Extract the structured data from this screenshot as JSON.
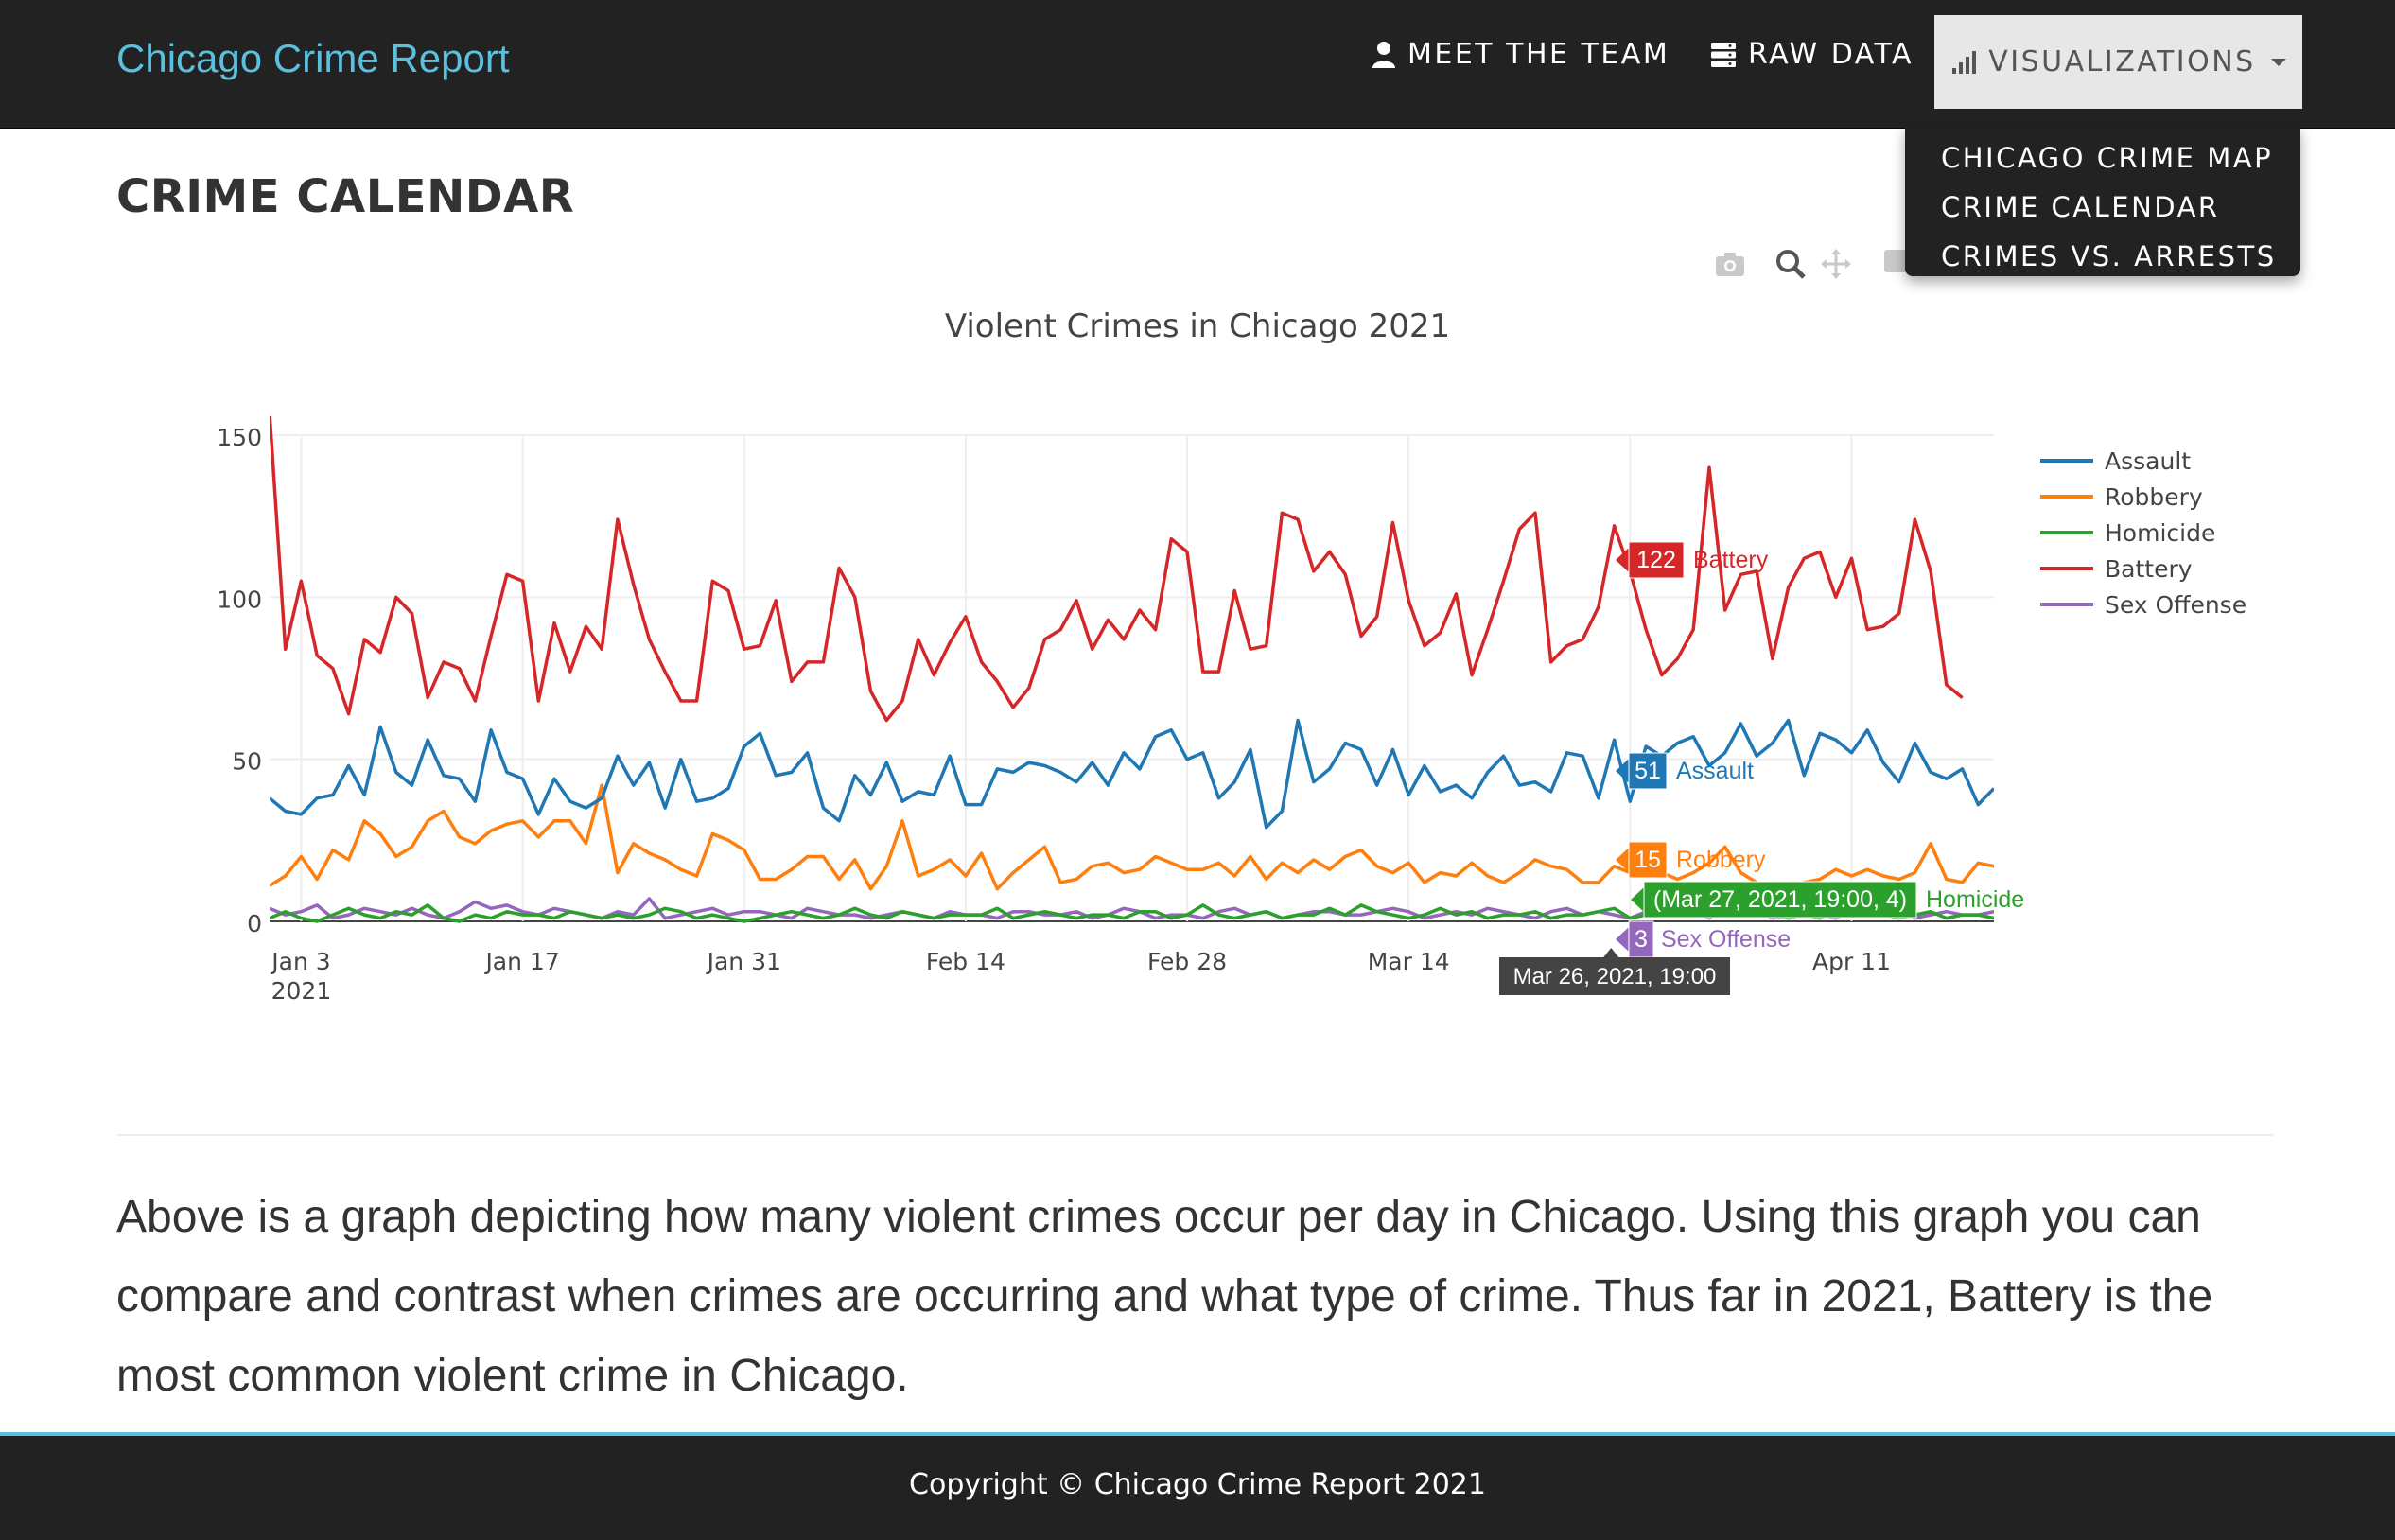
{
  "navbar": {
    "brand": "Chicago Crime Report",
    "items": [
      {
        "label": "MEET THE TEAM",
        "icon": "user-icon"
      },
      {
        "label": "RAW DATA",
        "icon": "server-icon"
      },
      {
        "label": "VISUALIZATIONS",
        "icon": "bar-chart-icon",
        "active": true
      }
    ],
    "dropdown": [
      "CHICAGO CRIME MAP",
      "CRIME CALENDAR",
      "CRIMES VS. ARRESTS"
    ]
  },
  "page": {
    "title": "CRIME CALENDAR",
    "description": "Above is a graph depicting how many violent crimes occur per day in Chicago. Using this graph you can compare and contrast when crimes are occurring and what type of crime. Thus far in 2021, Battery is the most common violent crime in Chicago."
  },
  "modebar": [
    "camera-icon",
    "zoom-icon",
    "pan-icon",
    "zoom-in-icon"
  ],
  "chart_data": {
    "type": "line",
    "title": "Violent Crimes in Chicago 2021",
    "x_start": "2021-01-01",
    "x_end": "2021-04-20",
    "xticks": [
      {
        "date": "2021-01-03",
        "label": "Jan 3",
        "sublabel": "2021"
      },
      {
        "date": "2021-01-17",
        "label": "Jan 17"
      },
      {
        "date": "2021-01-31",
        "label": "Jan 31"
      },
      {
        "date": "2021-02-14",
        "label": "Feb 14"
      },
      {
        "date": "2021-02-28",
        "label": "Feb 28"
      },
      {
        "date": "2021-03-14",
        "label": "Mar 14"
      },
      {
        "date": "2021-03-28",
        "label": ""
      },
      {
        "date": "2021-04-11",
        "label": "Apr 11"
      }
    ],
    "ylim": [
      0,
      150
    ],
    "yticks": [
      0,
      50,
      100,
      150
    ],
    "grid": true,
    "legend_position": "right",
    "series": [
      {
        "name": "Assault",
        "color": "#1f77b4",
        "values": [
          38,
          34,
          33,
          38,
          39,
          48,
          39,
          60,
          46,
          42,
          56,
          45,
          44,
          37,
          59,
          46,
          44,
          33,
          44,
          37,
          35,
          38,
          51,
          42,
          49,
          35,
          50,
          37,
          38,
          41,
          54,
          58,
          45,
          46,
          52,
          35,
          31,
          45,
          39,
          49,
          37,
          40,
          39,
          51,
          36,
          36,
          47,
          46,
          49,
          48,
          46,
          43,
          49,
          42,
          52,
          47,
          57,
          59,
          50,
          52,
          38,
          43,
          53,
          29,
          34,
          62,
          43,
          47,
          55,
          53,
          42,
          53,
          39,
          48,
          40,
          42,
          38,
          46,
          51,
          42,
          43,
          40,
          52,
          51,
          38,
          56,
          37,
          54,
          51,
          55,
          57,
          48,
          52,
          61,
          51,
          55,
          62,
          45,
          58,
          56,
          52,
          59,
          49,
          43,
          55,
          46,
          44,
          47,
          36,
          41
        ]
      },
      {
        "name": "Robbery",
        "color": "#ff7f0e",
        "values": [
          11,
          14,
          20,
          13,
          22,
          19,
          31,
          27,
          20,
          23,
          31,
          34,
          26,
          24,
          28,
          30,
          31,
          26,
          31,
          31,
          24,
          42,
          15,
          24,
          21,
          19,
          16,
          14,
          27,
          25,
          22,
          13,
          13,
          16,
          20,
          20,
          13,
          19,
          10,
          17,
          31,
          14,
          16,
          19,
          14,
          21,
          10,
          15,
          19,
          23,
          12,
          13,
          17,
          18,
          15,
          16,
          20,
          18,
          16,
          16,
          18,
          14,
          20,
          13,
          18,
          15,
          19,
          16,
          20,
          22,
          17,
          15,
          18,
          12,
          15,
          14,
          18,
          14,
          12,
          15,
          19,
          17,
          16,
          12,
          12,
          17,
          15,
          14,
          15,
          13,
          15,
          18,
          23,
          15,
          12,
          10,
          11,
          12,
          13,
          16,
          14,
          16,
          14,
          13,
          15,
          24,
          13,
          12,
          18,
          17,
          15
        ]
      },
      {
        "name": "Homicide",
        "color": "#2ca02c",
        "values": [
          1,
          3,
          1,
          0,
          2,
          4,
          2,
          1,
          3,
          2,
          5,
          1,
          0,
          2,
          1,
          3,
          2,
          2,
          1,
          3,
          2,
          1,
          2,
          1,
          2,
          4,
          3,
          1,
          2,
          1,
          0,
          1,
          2,
          3,
          2,
          1,
          2,
          4,
          2,
          1,
          3,
          2,
          1,
          2,
          2,
          2,
          4,
          1,
          2,
          3,
          2,
          1,
          2,
          2,
          1,
          3,
          3,
          1,
          2,
          5,
          2,
          1,
          2,
          3,
          1,
          2,
          2,
          4,
          2,
          5,
          3,
          2,
          1,
          2,
          4,
          2,
          3,
          1,
          2,
          2,
          3,
          1,
          2,
          2,
          3,
          4,
          1,
          2,
          2,
          3,
          2,
          4,
          3,
          3,
          4,
          2,
          1,
          2,
          1,
          3,
          2,
          3,
          2,
          1,
          2,
          3,
          1,
          2,
          2,
          1,
          3
        ]
      },
      {
        "name": "Battery",
        "color": "#d62728",
        "values": [
          157,
          84,
          105,
          82,
          78,
          64,
          87,
          83,
          100,
          95,
          69,
          80,
          78,
          68,
          88,
          107,
          105,
          68,
          92,
          77,
          91,
          84,
          124,
          104,
          87,
          77,
          68,
          68,
          105,
          102,
          84,
          85,
          99,
          74,
          80,
          80,
          109,
          100,
          71,
          62,
          68,
          87,
          76,
          86,
          94,
          80,
          74,
          66,
          72,
          87,
          90,
          99,
          84,
          93,
          87,
          96,
          90,
          118,
          114,
          77,
          77,
          102,
          84,
          85,
          126,
          124,
          108,
          114,
          107,
          88,
          94,
          123,
          99,
          85,
          89,
          101,
          76,
          90,
          105,
          121,
          126,
          80,
          85,
          87,
          97,
          122,
          108,
          90,
          76,
          81,
          90,
          140,
          96,
          107,
          108,
          81,
          103,
          112,
          114,
          100,
          112,
          90,
          91,
          95,
          124,
          108,
          73,
          69
        ]
      },
      {
        "name": "Sex Offense",
        "color": "#9467bd",
        "values": [
          4,
          2,
          3,
          5,
          1,
          2,
          4,
          3,
          2,
          4,
          2,
          1,
          3,
          6,
          4,
          5,
          3,
          2,
          4,
          3,
          2,
          1,
          3,
          2,
          7,
          1,
          2,
          3,
          4,
          2,
          3,
          3,
          2,
          1,
          4,
          3,
          2,
          2,
          1,
          2,
          3,
          2,
          1,
          3,
          2,
          2,
          1,
          3,
          3,
          2,
          2,
          3,
          1,
          2,
          4,
          3,
          1,
          2,
          2,
          1,
          3,
          4,
          2,
          3,
          1,
          2,
          3,
          3,
          2,
          2,
          3,
          4,
          3,
          1,
          2,
          3,
          2,
          4,
          3,
          2,
          1,
          3,
          4,
          2,
          3,
          2,
          1,
          3,
          3,
          2,
          3,
          1,
          4,
          2,
          3,
          1,
          2,
          3,
          2,
          1,
          3,
          3,
          2,
          4,
          1,
          2,
          3,
          2,
          2,
          3,
          2
        ]
      }
    ],
    "hover": {
      "x_label": "Mar 26, 2021, 19:00",
      "labels": [
        {
          "series": "Battery",
          "text": "122",
          "name": "Battery"
        },
        {
          "series": "Assault",
          "text": "51",
          "name": "Assault"
        },
        {
          "series": "Robbery",
          "text": "15",
          "name": "Robbery"
        },
        {
          "series": "Homicide",
          "text": "(Mar 27, 2021, 19:00, 4)",
          "name": "Homicide"
        },
        {
          "series": "Sex Offense",
          "text": "3",
          "name": "Sex Offense"
        }
      ]
    }
  },
  "footer": {
    "text": "Copyright © Chicago Crime Report 2021"
  }
}
